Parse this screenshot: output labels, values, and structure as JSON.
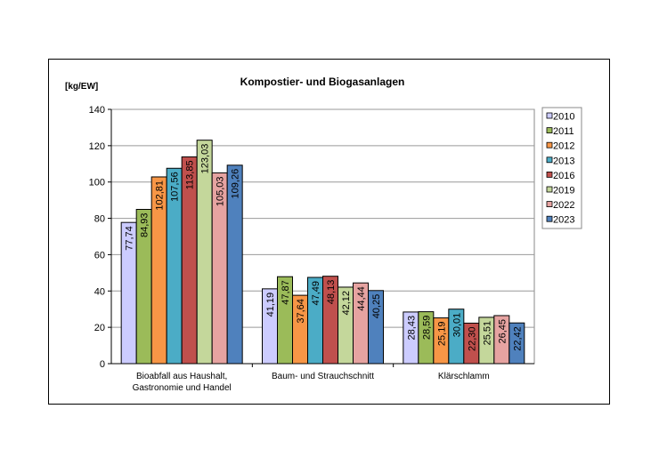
{
  "chart_data": {
    "type": "bar",
    "title": "Kompostier- und Biogasanlagen",
    "ylabel": "[kg/EW]",
    "xlabel": "",
    "ylim": [
      0,
      140
    ],
    "yticks": [
      0,
      20,
      40,
      60,
      80,
      100,
      120,
      140
    ],
    "grid": true,
    "legend_placement": "right",
    "categories": [
      [
        "Bioabfall aus Haushalt,",
        "Gastronomie und Handel"
      ],
      [
        "Baum- und Strauchschnitt"
      ],
      [
        "Klärschlamm"
      ]
    ],
    "series": [
      {
        "name": "2010",
        "color": "#ccccff",
        "values": [
          77.74,
          41.19,
          28.43
        ],
        "labels": [
          "77,74",
          "41,19",
          "28,43"
        ]
      },
      {
        "name": "2011",
        "color": "#9bbb59",
        "values": [
          84.93,
          47.87,
          28.59
        ],
        "labels": [
          "84,93",
          "47,87",
          "28,59"
        ]
      },
      {
        "name": "2012",
        "color": "#f79646",
        "values": [
          102.81,
          37.64,
          25.19
        ],
        "labels": [
          "102,81",
          "37,64",
          "25,19"
        ]
      },
      {
        "name": "2013",
        "color": "#4bacc6",
        "values": [
          107.56,
          47.49,
          30.01
        ],
        "labels": [
          "107,56",
          "47,49",
          "30,01"
        ]
      },
      {
        "name": "2016",
        "color": "#c0504d",
        "values": [
          113.85,
          48.13,
          22.3
        ],
        "labels": [
          "113,85",
          "48,13",
          "22,30"
        ]
      },
      {
        "name": "2019",
        "color": "#c4d79b",
        "values": [
          123.03,
          42.12,
          25.51
        ],
        "labels": [
          "123,03",
          "42,12",
          "25,51"
        ]
      },
      {
        "name": "2022",
        "color": "#e6a3a1",
        "values": [
          105.03,
          44.44,
          26.45
        ],
        "labels": [
          "105,03",
          "44,44",
          "26,45"
        ]
      },
      {
        "name": "2023",
        "color": "#4f81bd",
        "values": [
          109.26,
          40.25,
          22.42
        ],
        "labels": [
          "109,26",
          "40,25",
          "22,42"
        ]
      }
    ]
  }
}
